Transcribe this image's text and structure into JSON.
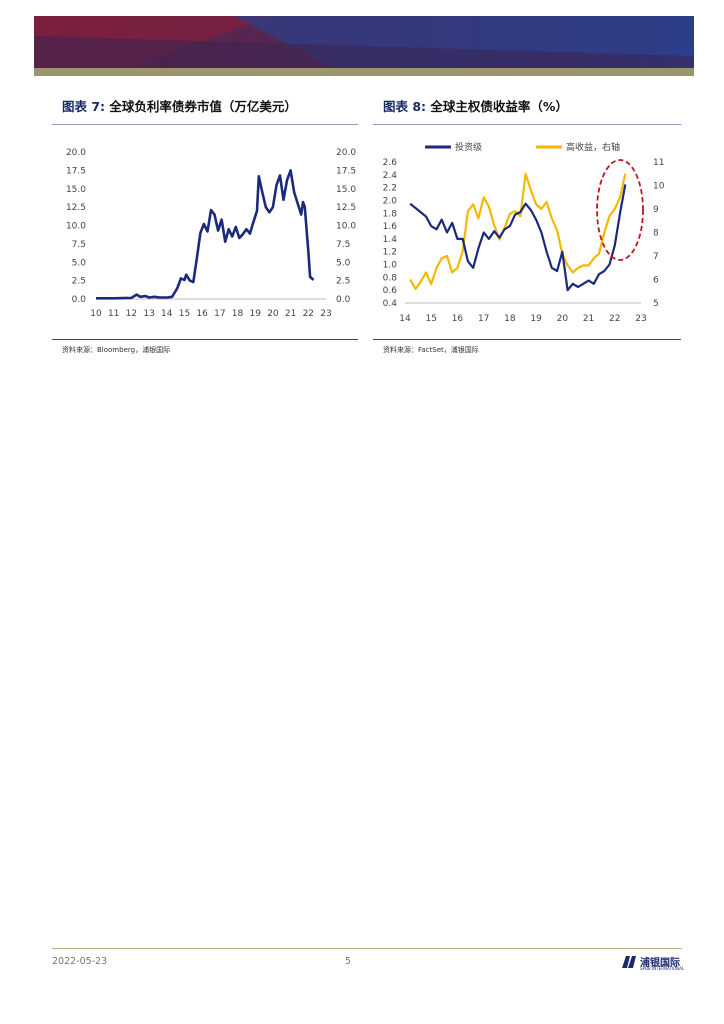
{
  "figures": [
    {
      "label": "图表 7:",
      "title": "全球负利率债券市值（万亿美元）",
      "source": "资料来源：Bloomberg，浦银国际",
      "chart_data": {
        "type": "line",
        "title": "全球负利率债券市值（万亿美元）",
        "x_ticks": [
          "10",
          "11",
          "12",
          "13",
          "14",
          "15",
          "16",
          "17",
          "18",
          "19",
          "20",
          "21",
          "22",
          "23"
        ],
        "y_left_ticks": [
          "0.0",
          "2.5",
          "5.0",
          "7.5",
          "10.0",
          "12.5",
          "15.0",
          "17.5",
          "20.0"
        ],
        "y_right_ticks": [
          "0.0",
          "2.5",
          "5.0",
          "7.5",
          "10.0",
          "12.5",
          "15.0",
          "17.5",
          "20.0"
        ],
        "xlim": [
          10,
          23
        ],
        "ylim": [
          0,
          20
        ],
        "series": [
          {
            "name": "全球负利率债券市值",
            "color": "#1b2a7a",
            "x": [
              10.0,
              11.0,
              12.0,
              12.3,
              12.5,
              12.8,
              13.0,
              13.3,
              13.6,
              14.0,
              14.3,
              14.6,
              14.8,
              15.0,
              15.1,
              15.3,
              15.5,
              15.7,
              15.9,
              16.1,
              16.3,
              16.5,
              16.7,
              16.9,
              17.1,
              17.3,
              17.5,
              17.7,
              17.9,
              18.1,
              18.3,
              18.5,
              18.7,
              18.9,
              19.1,
              19.2,
              19.4,
              19.6,
              19.8,
              20.0,
              20.2,
              20.4,
              20.6,
              20.8,
              21.0,
              21.2,
              21.4,
              21.6,
              21.7,
              21.8,
              22.0,
              22.1,
              22.3
            ],
            "y": [
              0.1,
              0.1,
              0.15,
              0.6,
              0.3,
              0.4,
              0.2,
              0.3,
              0.2,
              0.2,
              0.3,
              1.5,
              2.8,
              2.6,
              3.3,
              2.5,
              2.3,
              5.5,
              9.0,
              10.2,
              9.2,
              12.1,
              11.5,
              9.3,
              10.8,
              7.8,
              9.5,
              8.5,
              9.8,
              8.3,
              8.8,
              9.5,
              8.9,
              10.5,
              12.0,
              16.7,
              14.5,
              12.5,
              11.8,
              12.5,
              15.5,
              16.8,
              13.5,
              16.2,
              17.5,
              14.5,
              13.0,
              11.5,
              13.2,
              12.5,
              6.5,
              3.0,
              2.6
            ]
          }
        ]
      }
    },
    {
      "label": "图表 8:",
      "title": "全球主权债收益率（%）",
      "source": "资料来源：FactSet，浦银国际",
      "chart_data": {
        "type": "line",
        "title": "全球主权债收益率（%）",
        "legend_position": "top",
        "x_ticks": [
          "14",
          "15",
          "16",
          "17",
          "18",
          "19",
          "20",
          "21",
          "22",
          "23"
        ],
        "y_left_ticks": [
          "0.4",
          "0.6",
          "0.8",
          "1.0",
          "1.2",
          "1.4",
          "1.6",
          "1.8",
          "2.0",
          "2.2",
          "2.4",
          "2.6"
        ],
        "y_right_ticks": [
          "5",
          "6",
          "7",
          "8",
          "9",
          "10",
          "11"
        ],
        "xlim": [
          14,
          23
        ],
        "ylim_left": [
          0.4,
          2.6
        ],
        "ylim_right": [
          5,
          11
        ],
        "series": [
          {
            "name": "投资级",
            "axis": "left",
            "color": "#1b2a7a",
            "x": [
              14.2,
              14.5,
              14.8,
              15.0,
              15.2,
              15.4,
              15.6,
              15.8,
              16.0,
              16.2,
              16.4,
              16.6,
              16.8,
              17.0,
              17.2,
              17.4,
              17.6,
              17.8,
              18.0,
              18.2,
              18.4,
              18.6,
              18.8,
              19.0,
              19.2,
              19.4,
              19.6,
              19.8,
              20.0,
              20.2,
              20.4,
              20.6,
              20.8,
              21.0,
              21.2,
              21.4,
              21.6,
              21.8,
              22.0,
              22.2,
              22.4
            ],
            "y": [
              1.95,
              1.85,
              1.75,
              1.6,
              1.55,
              1.7,
              1.5,
              1.65,
              1.4,
              1.4,
              1.05,
              0.95,
              1.25,
              1.5,
              1.4,
              1.52,
              1.42,
              1.55,
              1.6,
              1.78,
              1.82,
              1.95,
              1.85,
              1.7,
              1.5,
              1.2,
              0.95,
              0.9,
              1.2,
              0.6,
              0.7,
              0.65,
              0.7,
              0.75,
              0.7,
              0.85,
              0.9,
              1.0,
              1.3,
              1.8,
              2.25
            ]
          },
          {
            "name": "高收益，右轴",
            "axis": "right",
            "color": "#f5b800",
            "x": [
              14.2,
              14.4,
              14.6,
              14.8,
              15.0,
              15.2,
              15.4,
              15.6,
              15.8,
              16.0,
              16.2,
              16.4,
              16.6,
              16.8,
              17.0,
              17.2,
              17.4,
              17.6,
              17.8,
              18.0,
              18.2,
              18.4,
              18.6,
              18.8,
              19.0,
              19.2,
              19.4,
              19.6,
              19.8,
              20.0,
              20.2,
              20.4,
              20.6,
              20.8,
              21.0,
              21.2,
              21.4,
              21.6,
              21.8,
              22.0,
              22.2,
              22.4
            ],
            "y": [
              6.0,
              5.6,
              5.9,
              6.3,
              5.8,
              6.5,
              6.9,
              7.0,
              6.3,
              6.5,
              7.2,
              8.9,
              9.2,
              8.6,
              9.5,
              9.1,
              8.3,
              7.7,
              8.2,
              8.8,
              8.9,
              8.7,
              10.5,
              9.8,
              9.2,
              9.0,
              9.3,
              8.6,
              8.1,
              7.1,
              6.6,
              6.3,
              6.5,
              6.6,
              6.6,
              6.9,
              7.1,
              8.0,
              8.7,
              9.0,
              9.5,
              10.5
            ]
          }
        ]
      }
    }
  ],
  "footer": {
    "date": "2022-05-23",
    "page": "5",
    "logo_text": "浦银国际",
    "logo_sub": "SPDB INTERNATIONAL"
  }
}
